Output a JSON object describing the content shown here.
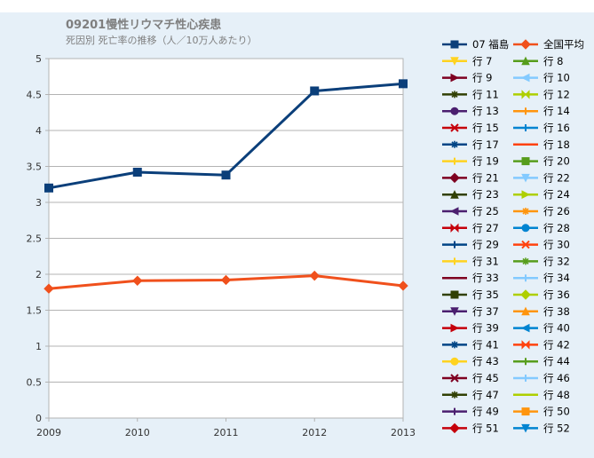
{
  "title": "09201慢性リウマチ性心疾患",
  "subtitle": "死因別 死亡率の推移（人／10万人あたり）",
  "chart_data": {
    "type": "line",
    "title": "09201慢性リウマチ性心疾患",
    "subtitle": "死因別 死亡率の推移（人／10万人あたり）",
    "x": [
      "2009",
      "2010",
      "2011",
      "2012",
      "2013"
    ],
    "ylim": [
      0,
      5
    ],
    "yticks": [
      "0",
      "0.5",
      "1",
      "1.5",
      "2",
      "2.5",
      "3",
      "3.5",
      "4",
      "4.5",
      "5"
    ],
    "grid": true,
    "legend_position": "right",
    "series": [
      {
        "name": "07 福島",
        "values": [
          3.2,
          3.42,
          3.38,
          4.55,
          4.65
        ],
        "color": "#0b3f7a",
        "marker": "square"
      },
      {
        "name": "全国平均",
        "values": [
          1.8,
          1.91,
          1.92,
          1.98,
          1.84
        ],
        "color": "#f0501c",
        "marker": "diamond"
      }
    ]
  },
  "legend": [
    {
      "label": "07 福島",
      "color": "#0b3f7a",
      "marker": "square"
    },
    {
      "label": "全国平均",
      "color": "#f0501c",
      "marker": "diamond"
    },
    {
      "label": "行 7",
      "color": "#ffd320",
      "marker": "tri-down"
    },
    {
      "label": "行 8",
      "color": "#579d1c",
      "marker": "tri-up"
    },
    {
      "label": "行 9",
      "color": "#7e0021",
      "marker": "tri-right"
    },
    {
      "label": "行 10",
      "color": "#83caff",
      "marker": "tri-left"
    },
    {
      "label": "行 11",
      "color": "#314004",
      "marker": "star"
    },
    {
      "label": "行 12",
      "color": "#aecf00",
      "marker": "bowtie"
    },
    {
      "label": "行 13",
      "color": "#4b1f6f",
      "marker": "circle"
    },
    {
      "label": "行 14",
      "color": "#ff950e",
      "marker": "plus"
    },
    {
      "label": "行 15",
      "color": "#c5000b",
      "marker": "x"
    },
    {
      "label": "行 16",
      "color": "#0084d1",
      "marker": "plus"
    },
    {
      "label": "行 17",
      "color": "#004586",
      "marker": "star"
    },
    {
      "label": "行 18",
      "color": "#ff420e",
      "marker": "none"
    },
    {
      "label": "行 19",
      "color": "#ffd320",
      "marker": "plus"
    },
    {
      "label": "行 20",
      "color": "#579d1c",
      "marker": "square"
    },
    {
      "label": "行 21",
      "color": "#7e0021",
      "marker": "diamond"
    },
    {
      "label": "行 22",
      "color": "#83caff",
      "marker": "tri-down"
    },
    {
      "label": "行 23",
      "color": "#314004",
      "marker": "tri-up"
    },
    {
      "label": "行 24",
      "color": "#aecf00",
      "marker": "tri-right"
    },
    {
      "label": "行 25",
      "color": "#4b1f6f",
      "marker": "tri-left"
    },
    {
      "label": "行 26",
      "color": "#ff950e",
      "marker": "star"
    },
    {
      "label": "行 27",
      "color": "#c5000b",
      "marker": "bowtie"
    },
    {
      "label": "行 28",
      "color": "#0084d1",
      "marker": "circle"
    },
    {
      "label": "行 29",
      "color": "#004586",
      "marker": "plus"
    },
    {
      "label": "行 30",
      "color": "#ff420e",
      "marker": "x"
    },
    {
      "label": "行 31",
      "color": "#ffd320",
      "marker": "plus"
    },
    {
      "label": "行 32",
      "color": "#579d1c",
      "marker": "star"
    },
    {
      "label": "行 33",
      "color": "#7e0021",
      "marker": "none"
    },
    {
      "label": "行 34",
      "color": "#83caff",
      "marker": "plus"
    },
    {
      "label": "行 35",
      "color": "#314004",
      "marker": "square"
    },
    {
      "label": "行 36",
      "color": "#aecf00",
      "marker": "diamond"
    },
    {
      "label": "行 37",
      "color": "#4b1f6f",
      "marker": "tri-down"
    },
    {
      "label": "行 38",
      "color": "#ff950e",
      "marker": "tri-up"
    },
    {
      "label": "行 39",
      "color": "#c5000b",
      "marker": "tri-right"
    },
    {
      "label": "行 40",
      "color": "#0084d1",
      "marker": "tri-left"
    },
    {
      "label": "行 41",
      "color": "#004586",
      "marker": "star"
    },
    {
      "label": "行 42",
      "color": "#ff420e",
      "marker": "bowtie"
    },
    {
      "label": "行 43",
      "color": "#ffd320",
      "marker": "circle"
    },
    {
      "label": "行 44",
      "color": "#579d1c",
      "marker": "plus"
    },
    {
      "label": "行 45",
      "color": "#7e0021",
      "marker": "x"
    },
    {
      "label": "行 46",
      "color": "#83caff",
      "marker": "plus"
    },
    {
      "label": "行 47",
      "color": "#314004",
      "marker": "star"
    },
    {
      "label": "行 48",
      "color": "#aecf00",
      "marker": "none"
    },
    {
      "label": "行 49",
      "color": "#4b1f6f",
      "marker": "plus"
    },
    {
      "label": "行 50",
      "color": "#ff950e",
      "marker": "square"
    },
    {
      "label": "行 51",
      "color": "#c5000b",
      "marker": "diamond"
    },
    {
      "label": "行 52",
      "color": "#0084d1",
      "marker": "tri-down"
    }
  ]
}
